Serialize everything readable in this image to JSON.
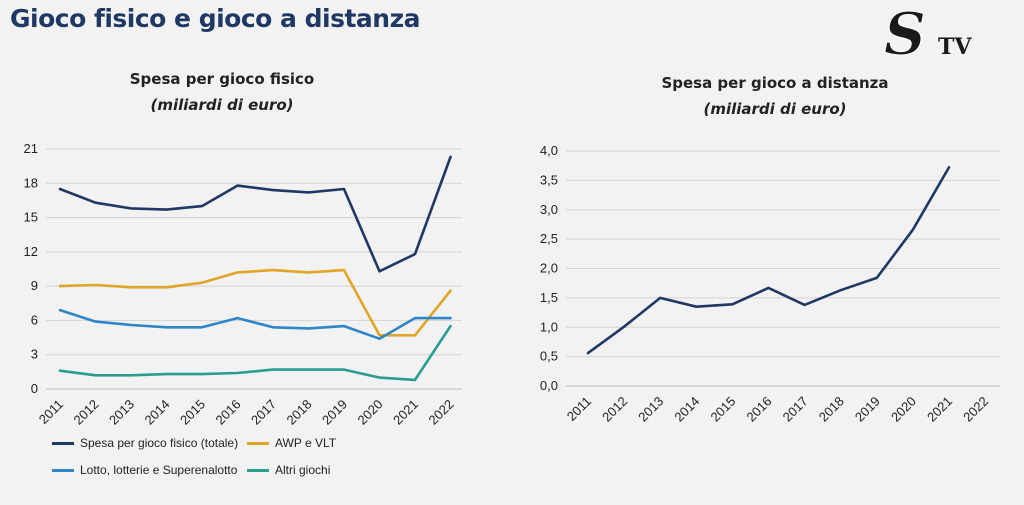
{
  "page": {
    "title": "Gioco fisico e gioco a distanza",
    "logo_text": "STV"
  },
  "chart_data": [
    {
      "type": "line",
      "title": "Spesa per gioco fisico",
      "subtitle": "(miliardi di euro)",
      "x": [
        "2011",
        "2012",
        "2013",
        "2014",
        "2015",
        "2016",
        "2017",
        "2018",
        "2019",
        "2020",
        "2021",
        "2022"
      ],
      "ylim": [
        0,
        21
      ],
      "yticks": [
        "0",
        "3",
        "6",
        "9",
        "12",
        "15",
        "18",
        "21"
      ],
      "grid": true,
      "legend_position": "bottom",
      "series": [
        {
          "name": "Spesa per gioco fisico (totale)",
          "color": "#1f3864",
          "values": [
            17.5,
            16.3,
            15.8,
            15.7,
            16.0,
            17.8,
            17.4,
            17.2,
            17.5,
            10.3,
            11.8,
            20.3
          ]
        },
        {
          "name": "AWP e VLT",
          "color": "#e0a526",
          "values": [
            9.0,
            9.1,
            8.9,
            8.9,
            9.3,
            10.2,
            10.4,
            10.2,
            10.4,
            4.7,
            4.7,
            8.6
          ]
        },
        {
          "name": "Lotto, lotterie e Superenalotto",
          "color": "#2e86c8",
          "values": [
            6.9,
            5.9,
            5.6,
            5.4,
            5.4,
            6.2,
            5.4,
            5.3,
            5.5,
            4.4,
            6.2,
            6.2
          ]
        },
        {
          "name": "Altri giochi",
          "color": "#2a9d8f",
          "values": [
            1.6,
            1.2,
            1.2,
            1.3,
            1.3,
            1.4,
            1.7,
            1.7,
            1.7,
            1.0,
            0.8,
            5.5
          ]
        }
      ]
    },
    {
      "type": "line",
      "title": "Spesa per gioco a distanza",
      "subtitle": "(miliardi di euro)",
      "x": [
        "2011",
        "2012",
        "2013",
        "2014",
        "2015",
        "2016",
        "2017",
        "2018",
        "2019",
        "2020",
        "2021",
        "2022"
      ],
      "ylim": [
        0,
        4
      ],
      "yticks": [
        "0,0",
        "0,5",
        "1,0",
        "1,5",
        "2,0",
        "2,5",
        "3,0",
        "3,5",
        "4,0"
      ],
      "grid": true,
      "series": [
        {
          "color": "#1f3864",
          "values": [
            0.56,
            1.01,
            1.5,
            1.35,
            1.39,
            1.67,
            1.38,
            1.63,
            1.84,
            2.66,
            3.72,
            null
          ]
        }
      ]
    }
  ]
}
